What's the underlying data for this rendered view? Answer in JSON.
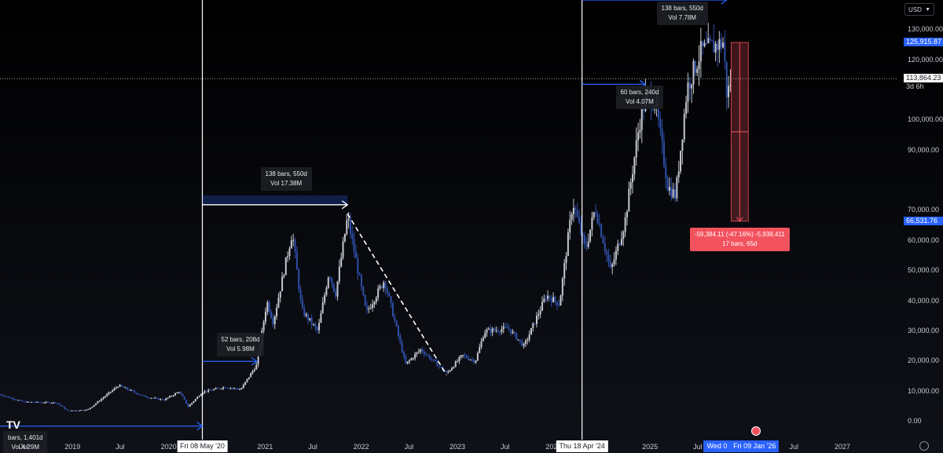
{
  "currency": "USD",
  "chart_data": {
    "type": "candlestick",
    "y_scale": "linear",
    "ylim": [
      -6000,
      140000
    ],
    "xlim": [
      "2018-04-01",
      "2027-08-01"
    ],
    "price_ticks": [
      0,
      10000,
      20000,
      30000,
      40000,
      50000,
      60000,
      70000,
      80000,
      90000,
      100000,
      110000,
      120000,
      130000
    ],
    "price_tick_labels": [
      "0.00",
      "10,000.00",
      "20,000.00",
      "30,000.00",
      "40,000.00",
      "50,000.00",
      "60,000.00",
      "70,000.00",
      "",
      "90,000.00",
      "100,000.00",
      "",
      "120,000.00",
      "130,000.00"
    ],
    "x_ticks": [
      {
        "date": "2018-07-01",
        "label": "Jul"
      },
      {
        "date": "2019-01-01",
        "label": "2019"
      },
      {
        "date": "2019-07-01",
        "label": "Jul"
      },
      {
        "date": "2020-01-01",
        "label": "2020"
      },
      {
        "date": "2021-01-01",
        "label": "2021"
      },
      {
        "date": "2021-07-01",
        "label": "Jul"
      },
      {
        "date": "2022-01-01",
        "label": "2022"
      },
      {
        "date": "2022-07-01",
        "label": "Jul"
      },
      {
        "date": "2023-01-01",
        "label": "2023"
      },
      {
        "date": "2023-07-01",
        "label": "Jul"
      },
      {
        "date": "2024-01-01",
        "label": "2024"
      },
      {
        "date": "2025-01-01",
        "label": "2025"
      },
      {
        "date": "2025-07-01",
        "label": "Jul"
      },
      {
        "date": "2026-07-01",
        "label": "Jul"
      },
      {
        "date": "2027-01-01",
        "label": "2027"
      }
    ],
    "price_path": [
      [
        "2018-04-01",
        9000
      ],
      [
        "2018-07-01",
        6500
      ],
      [
        "2018-11-01",
        6300
      ],
      [
        "2018-12-15",
        3500
      ],
      [
        "2019-03-01",
        4000
      ],
      [
        "2019-06-25",
        12000
      ],
      [
        "2019-10-01",
        8300
      ],
      [
        "2019-12-15",
        7200
      ],
      [
        "2020-02-10",
        10000
      ],
      [
        "2020-03-15",
        5000
      ],
      [
        "2020-05-08",
        9800
      ],
      [
        "2020-08-01",
        11500
      ],
      [
        "2020-10-01",
        10700
      ],
      [
        "2020-12-01",
        19000
      ],
      [
        "2021-01-08",
        40000
      ],
      [
        "2021-02-01",
        33000
      ],
      [
        "2021-04-14",
        63000
      ],
      [
        "2021-05-20",
        37000
      ],
      [
        "2021-07-20",
        30000
      ],
      [
        "2021-09-01",
        50000
      ],
      [
        "2021-09-25",
        42000
      ],
      [
        "2021-11-10",
        68000
      ],
      [
        "2022-01-20",
        36000
      ],
      [
        "2022-03-30",
        47000
      ],
      [
        "2022-06-18",
        19000
      ],
      [
        "2022-08-15",
        24000
      ],
      [
        "2022-11-21",
        16000
      ],
      [
        "2023-01-20",
        22000
      ],
      [
        "2023-03-10",
        20000
      ],
      [
        "2023-04-14",
        30000
      ],
      [
        "2023-07-14",
        31000
      ],
      [
        "2023-09-11",
        25000
      ],
      [
        "2023-12-05",
        42000
      ],
      [
        "2024-01-23",
        39000
      ],
      [
        "2024-03-14",
        73000
      ],
      [
        "2024-05-01",
        57000
      ],
      [
        "2024-06-07",
        71000
      ],
      [
        "2024-08-05",
        50000
      ],
      [
        "2024-09-27",
        66000
      ],
      [
        "2024-11-22",
        99000
      ],
      [
        "2024-12-17",
        108000
      ],
      [
        "2025-01-21",
        106000
      ],
      [
        "2025-03-10",
        78000
      ],
      [
        "2025-04-08",
        75000
      ],
      [
        "2025-05-22",
        111000
      ],
      [
        "2025-07-14",
        123000
      ],
      [
        "2025-08-14",
        124000
      ],
      [
        "2025-10-06",
        126000
      ],
      [
        "2025-10-20",
        108000
      ],
      [
        "2025-11-05",
        113864
      ]
    ],
    "last_price": "113,864.23",
    "countdown": "3d 6h",
    "high_label": "125,915.87",
    "low_label": "66,531.76",
    "annotations": [
      {
        "kind": "date_range",
        "start": "2018-04-01",
        "end": "2020-05-08",
        "price": -1500,
        "text": [
          "bars, 1,401d",
          "Vol 4.29M"
        ]
      },
      {
        "kind": "date_range",
        "start": "2020-05-08",
        "end": "2020-12-01",
        "price": 20000,
        "text": [
          "52 bars, 208d",
          "Vol 5.98M"
        ]
      },
      {
        "kind": "date_range",
        "start": "2020-05-08",
        "end": "2021-11-10",
        "price": 72000,
        "text": [
          "138 bars, 550d",
          "Vol 17.38M"
        ]
      },
      {
        "kind": "date_range",
        "start": "2024-04-18",
        "end": "2024-12-14",
        "price": 112000,
        "text": [
          "60 bars, 240d",
          "Vol 4.07M"
        ]
      },
      {
        "kind": "date_range",
        "start": "2024-04-18",
        "end": "2025-10-19",
        "price": 140000,
        "text": [
          "138 bars, 550d",
          "Vol 7.78M"
        ]
      },
      {
        "kind": "trend_line",
        "from": [
          "2021-11-10",
          69000
        ],
        "to": [
          "2022-11-21",
          15500
        ]
      },
      {
        "kind": "price_range",
        "start": "2025-11-05",
        "end": "2026-01-09",
        "from": 125915.87,
        "to": 66531.76,
        "text": [
          "-59,384.11 (-47.16%) -5,938,411",
          "17 bars, 65d"
        ]
      }
    ],
    "vertical_markers": [
      {
        "date": "2020-05-08",
        "label": "Fri 08 May '20"
      },
      {
        "date": "2024-04-18",
        "label": "Thu 18 Apr '24"
      }
    ],
    "x_highlight_labels": [
      "Wed 0",
      "Fri 09 Jan '26"
    ]
  }
}
